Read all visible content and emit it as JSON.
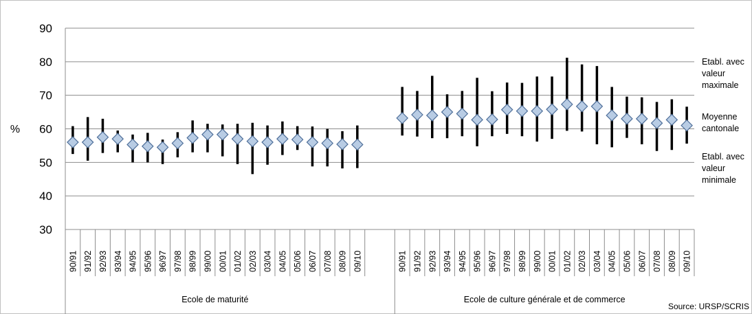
{
  "chart_data": {
    "type": "hilo",
    "y_label": "%",
    "source": "Source: URSP/SCRIS",
    "categories": [
      "90/91",
      "91/92",
      "92/93",
      "93/94",
      "94/95",
      "95/96",
      "96/97",
      "97/98",
      "98/99",
      "99/00",
      "00/01",
      "01/02",
      "02/03",
      "03/04",
      "04/05",
      "05/06",
      "06/07",
      "07/08",
      "08/09",
      "09/10",
      null,
      null,
      "90/91",
      "91/92",
      "92/93",
      "93/94",
      "94/95",
      "95/96",
      "96/97",
      "97/98",
      "98/99",
      "99/00",
      "00/01",
      "01/02",
      "02/03",
      "03/04",
      "04/05",
      "05/06",
      "06/07",
      "07/08",
      "08/09",
      "09/10"
    ],
    "groups": [
      "Ecole de maturité",
      "Ecole de culture générale et de commerce"
    ],
    "series": [
      {
        "name": "Etabl. avec valeur maximale",
        "color": "#000000",
        "values": [
          60.8,
          63.5,
          63,
          59.5,
          58.3,
          58.8,
          56.8,
          59,
          62.5,
          61.5,
          61.3,
          61.5,
          61.8,
          61,
          62.2,
          60.8,
          60.7,
          60,
          59.3,
          61,
          null,
          null,
          72.5,
          71.3,
          75.8,
          70.3,
          71.3,
          75.2,
          71.2,
          73.8,
          73.7,
          75.6,
          75.6,
          81.2,
          79.2,
          78.7,
          72.5,
          69.6,
          69.4,
          68,
          68.8,
          66.6
        ]
      },
      {
        "name": "Moyenne cantonale",
        "color": "#b8cce4",
        "edgecolor": "#4f6f99",
        "values": [
          56,
          56,
          57.5,
          57,
          55.3,
          54.8,
          54.5,
          55.7,
          57.3,
          58.3,
          58.3,
          57,
          56.3,
          56,
          57,
          56.8,
          56,
          55.7,
          55.4,
          55.3,
          null,
          null,
          63.2,
          64.2,
          64,
          65,
          64.5,
          62.7,
          62.8,
          65.7,
          65.3,
          65.3,
          65.8,
          67.3,
          66.7,
          66.7,
          64,
          63,
          63,
          61.7,
          62.7,
          61
        ]
      },
      {
        "name": "Etabl. avec valeur minimale",
        "color": "#000000",
        "values": [
          52.5,
          50.5,
          52.8,
          53,
          50,
          50,
          49.5,
          51.5,
          53,
          53,
          51.8,
          49.5,
          46.5,
          49.3,
          52.2,
          53.7,
          48.8,
          48.8,
          48.2,
          48.3,
          null,
          null,
          58,
          57.7,
          57.2,
          57.2,
          57.8,
          54.8,
          57.8,
          58.5,
          57.8,
          56.2,
          57,
          59.4,
          59.2,
          55.4,
          54.5,
          57.3,
          55.4,
          53.4,
          53.7,
          55.6
        ]
      }
    ],
    "ylim": [
      30,
      90
    ],
    "yticks": [
      30,
      40,
      50,
      60,
      70,
      80,
      90
    ],
    "grid": true
  }
}
